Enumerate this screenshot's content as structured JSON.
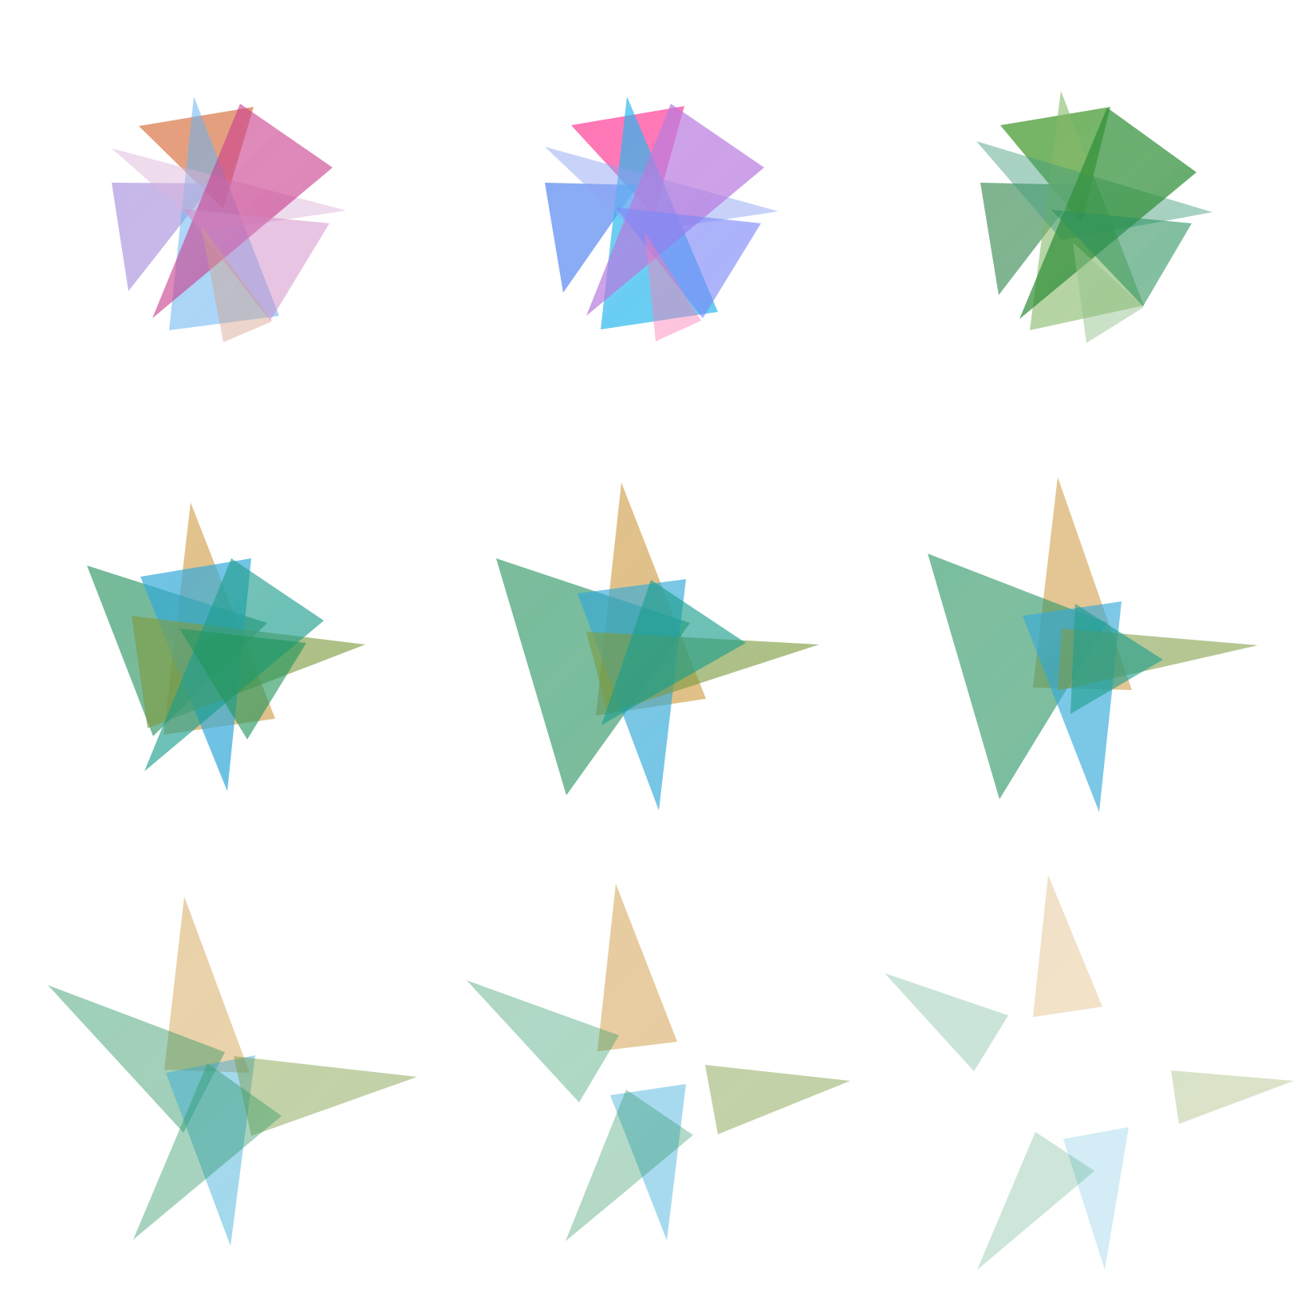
{
  "artwork": {
    "kind": "3x3 grid of translucent overlapping triangles",
    "background": "#ffffff",
    "palettes": {
      "pink_blue_1": [
        "#d9774a",
        "#c83c8c",
        "#b09ae0",
        "#66b3f0",
        "#cf84c4"
      ],
      "pink_blue_2": [
        "#ff4fa1",
        "#b777de",
        "#5e8cf2",
        "#24b5ee",
        "#7b85f7"
      ],
      "green": [
        "#4d9f3a",
        "#2d8d36",
        "#4f9868",
        "#29905c",
        "#83b866"
      ],
      "teal_gold_blue_olive": [
        "#d4a75a",
        "#1b9c8b",
        "#30a8d8",
        "#2c9563",
        "#7b9a3e"
      ]
    }
  }
}
